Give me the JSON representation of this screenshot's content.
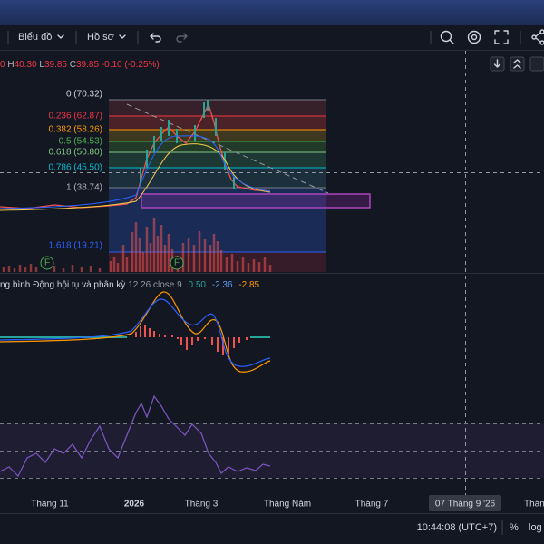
{
  "toolbar": {
    "chart_menu": "Biểu đồ",
    "profile_menu": "Hồ sơ"
  },
  "ohlc": {
    "open_tail": "0",
    "high_label": "H",
    "high": "40.30",
    "low_label": "L",
    "low": "39.85",
    "close_label": "C",
    "close": "39.85",
    "change": "-0.10 (-0.25%)"
  },
  "fib_levels": [
    "0 (70.32)",
    "0.236 (62.87)",
    "0.382 (58.26)",
    "0.5 (54.53)",
    "0.618 (50.80)",
    "0.786 (45.50)",
    "1 (38.74)",
    "1.618 (19.21)"
  ],
  "macd": {
    "name": "ng bình Động hội tụ và phân kỳ",
    "params": "12 26 close 9",
    "values": [
      "0.50",
      "-2.36",
      "-2.85"
    ]
  },
  "markers": [
    "F",
    "F"
  ],
  "time_axis": [
    "Tháng 11",
    "2026",
    "Tháng 3",
    "Tháng Năm",
    "Tháng 7",
    "Tháng"
  ],
  "crosshair_date": "07 Tháng 9 '26",
  "status": {
    "clock": "10:44:08 (UTC+7)",
    "percent": "%",
    "log": "log"
  }
}
